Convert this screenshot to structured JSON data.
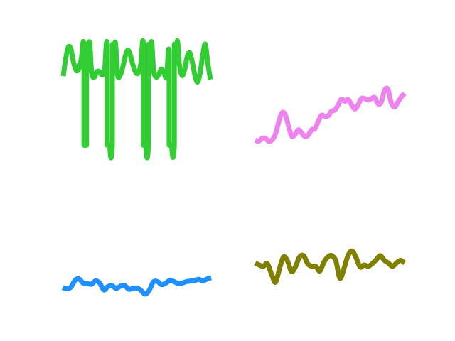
{
  "chart_data": [
    {
      "type": "line",
      "title": "",
      "xlabel": "",
      "ylabel": "",
      "grid": false,
      "axes_visible": false,
      "color": "#32cd32",
      "xlim": [
        0,
        63
      ],
      "ylim": [
        -2.2,
        1.05
      ],
      "y": [
        0.02,
        0.58,
        0.92,
        0.84,
        0.44,
        0.2,
        0.24,
        0.56,
        0.94,
        -2.1,
        1.0,
        0.12,
        -0.01,
        0.16,
        0.16,
        0.06,
        0.2,
        1.0,
        -2.1,
        -2.1,
        1.0,
        0.06,
        0.04,
        0.28,
        0.64,
        0.82,
        0.66,
        0.36,
        0.14,
        0.12,
        0.38,
        1.0,
        -2.1,
        -2.1,
        1.0,
        0.18,
        -0.01,
        0.08,
        0.24,
        0.12,
        0.0,
        0.78,
        -2.1,
        -2.1,
        1.0,
        0.36,
        0.04,
        0.22,
        0.62,
        0.74,
        0.44,
        0.04,
        -0.16,
        0.12,
        0.66,
        1.0,
        0.4,
        -0.08
      ]
    },
    {
      "type": "line",
      "title": "",
      "xlabel": "",
      "ylabel": "",
      "grid": false,
      "axes_visible": false,
      "color": "#ee82ee",
      "xlim": [
        0,
        63
      ],
      "ylim": [
        -0.1,
        1.05
      ],
      "y": [
        0.02,
        0.0,
        0.05,
        0.06,
        0.0,
        0.02,
        0.12,
        0.35,
        0.54,
        0.52,
        0.3,
        0.1,
        0.13,
        0.22,
        0.16,
        0.09,
        0.12,
        0.22,
        0.24,
        0.38,
        0.5,
        0.48,
        0.49,
        0.58,
        0.6,
        0.7,
        0.81,
        0.77,
        0.8,
        0.71,
        0.62,
        0.7,
        0.82,
        0.82,
        0.79,
        0.82,
        0.84,
        0.72,
        0.75,
        0.98,
        1.0,
        0.74,
        0.66,
        0.75,
        0.85,
        0.92
      ]
    },
    {
      "type": "line",
      "title": "",
      "xlabel": "",
      "ylabel": "",
      "grid": false,
      "axes_visible": false,
      "color": "#1e90ff",
      "xlim": [
        0,
        63
      ],
      "ylim": [
        -0.15,
        1.05
      ],
      "y": [
        0.34,
        0.28,
        0.36,
        0.72,
        0.8,
        0.58,
        0.56,
        0.52,
        0.7,
        0.58,
        0.22,
        0.4,
        0.44,
        0.3,
        0.42,
        0.46,
        0.26,
        0.3,
        0.32,
        0.2,
        0.0,
        0.2,
        0.64,
        0.66,
        0.5,
        0.58,
        0.72,
        0.66,
        0.56,
        0.58,
        0.66,
        0.69,
        0.72,
        0.78,
        0.7,
        0.8,
        0.86
      ]
    },
    {
      "type": "line",
      "title": "",
      "xlabel": "",
      "ylabel": "",
      "grid": false,
      "axes_visible": false,
      "color": "#808000",
      "xlim": [
        0,
        63
      ],
      "ylim": [
        -0.1,
        1.05
      ],
      "y": [
        0.62,
        0.56,
        0.52,
        0.6,
        0.3,
        0.04,
        0.44,
        0.8,
        0.68,
        0.36,
        0.52,
        0.8,
        0.84,
        0.6,
        0.52,
        0.52,
        0.38,
        0.64,
        0.8,
        0.84,
        0.68,
        0.16,
        0.46,
        0.84,
        0.98,
        0.78,
        0.5,
        0.56,
        0.52,
        0.6,
        0.72,
        0.84,
        0.7,
        0.62,
        0.52,
        0.62,
        0.7,
        0.62
      ]
    }
  ]
}
